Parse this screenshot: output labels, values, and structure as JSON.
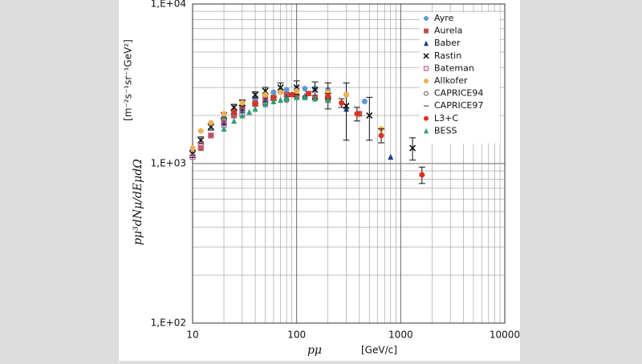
{
  "chart_data": {
    "type": "scatter",
    "y_label": "pμ³dNμ/dEμdΩ",
    "y_unit": "[m⁻²s⁻¹sr⁻¹GeV²]",
    "x_label": "pμ",
    "x_unit": "[GeV/c]",
    "xlog": true,
    "ylog": true,
    "grid": true,
    "minor_grid": true,
    "legend": "top-right",
    "xlim": [
      10,
      10000
    ],
    "xticks": [
      10,
      100,
      1000,
      10000
    ],
    "ylim": [
      100,
      10000
    ],
    "yticks": [
      {
        "value": 100,
        "label": "1,E+02"
      },
      {
        "value": 1000,
        "label": "1,E+03"
      },
      {
        "value": 10000,
        "label": "1,E+04"
      }
    ],
    "series": [
      {
        "name": "Ayre",
        "color": "#5b9bd5",
        "marker": "circle",
        "x": [
          30,
          40,
          50,
          60,
          70,
          80,
          100,
          120,
          150,
          200,
          300,
          450
        ],
        "values": [
          2300,
          2550,
          2700,
          2800,
          2850,
          2900,
          2950,
          2950,
          2950,
          2900,
          2700,
          2450
        ]
      },
      {
        "name": "Aurela",
        "color": "#c0504d",
        "marker": "square",
        "x": [
          12,
          15,
          20,
          25,
          30,
          40,
          50,
          60,
          80,
          100,
          150,
          200,
          400
        ],
        "values": [
          1250,
          1500,
          1800,
          2000,
          2200,
          2400,
          2550,
          2600,
          2700,
          2650,
          2600,
          2550,
          2050
        ]
      },
      {
        "name": "Baber",
        "color": "#1f3c88",
        "marker": "triangle",
        "x": [
          20,
          30,
          50,
          80,
          120,
          200,
          300,
          800
        ],
        "values": [
          1800,
          2150,
          2500,
          2600,
          2650,
          2500,
          2200,
          1100
        ]
      },
      {
        "name": "Rastin",
        "color": "#111111",
        "marker": "x",
        "x": [
          10,
          12,
          15,
          20,
          25,
          30,
          40,
          50,
          70,
          100,
          150,
          200,
          300,
          500,
          1300
        ],
        "values": [
          1150,
          1400,
          1700,
          2000,
          2250,
          2400,
          2700,
          2850,
          3000,
          3000,
          2900,
          2700,
          2300,
          2000,
          1250
        ],
        "errors": [
          60,
          70,
          80,
          90,
          100,
          100,
          120,
          150,
          200,
          300,
          350,
          500,
          900,
          600,
          200
        ]
      },
      {
        "name": "Bateman",
        "color": "#c06090",
        "marker": "square-open",
        "x": [
          10,
          12,
          15,
          20,
          30,
          50
        ],
        "values": [
          1100,
          1300,
          1500,
          1750,
          2050,
          2400
        ]
      },
      {
        "name": "Allkofer",
        "color": "#f0b050",
        "marker": "circle",
        "x": [
          10,
          12,
          15,
          20,
          30,
          50,
          70,
          100,
          200,
          300,
          650
        ],
        "values": [
          1250,
          1600,
          1800,
          2050,
          2400,
          2700,
          2800,
          2850,
          2800,
          2700,
          1650
        ]
      },
      {
        "name": "CAPRICE94",
        "color": "#555555",
        "marker": "circle-open",
        "x": [
          20,
          30,
          50,
          80,
          120
        ],
        "values": [
          1900,
          2200,
          2400,
          2500,
          2600
        ]
      },
      {
        "name": "CAPRICE97",
        "color": "#777777",
        "marker": "dash",
        "x": [
          25,
          40,
          60,
          100
        ],
        "values": [
          2000,
          2300,
          2500,
          2600
        ]
      },
      {
        "name": "L3+C",
        "color": "#e03020",
        "marker": "circle",
        "x": [
          25,
          40,
          60,
          90,
          130,
          200,
          270,
          380,
          650,
          1600
        ],
        "values": [
          2100,
          2350,
          2550,
          2700,
          2750,
          2650,
          2400,
          2050,
          1500,
          850
        ],
        "errors": [
          50,
          50,
          60,
          70,
          80,
          100,
          150,
          200,
          150,
          100
        ]
      },
      {
        "name": "BESS",
        "color": "#2e9e6e",
        "marker": "triangle",
        "x": [
          20,
          25,
          30,
          35,
          40,
          50,
          60,
          70,
          80,
          100,
          120,
          150,
          200
        ],
        "values": [
          1650,
          1850,
          2000,
          2100,
          2200,
          2350,
          2450,
          2500,
          2550,
          2600,
          2600,
          2550,
          2500
        ]
      }
    ]
  }
}
